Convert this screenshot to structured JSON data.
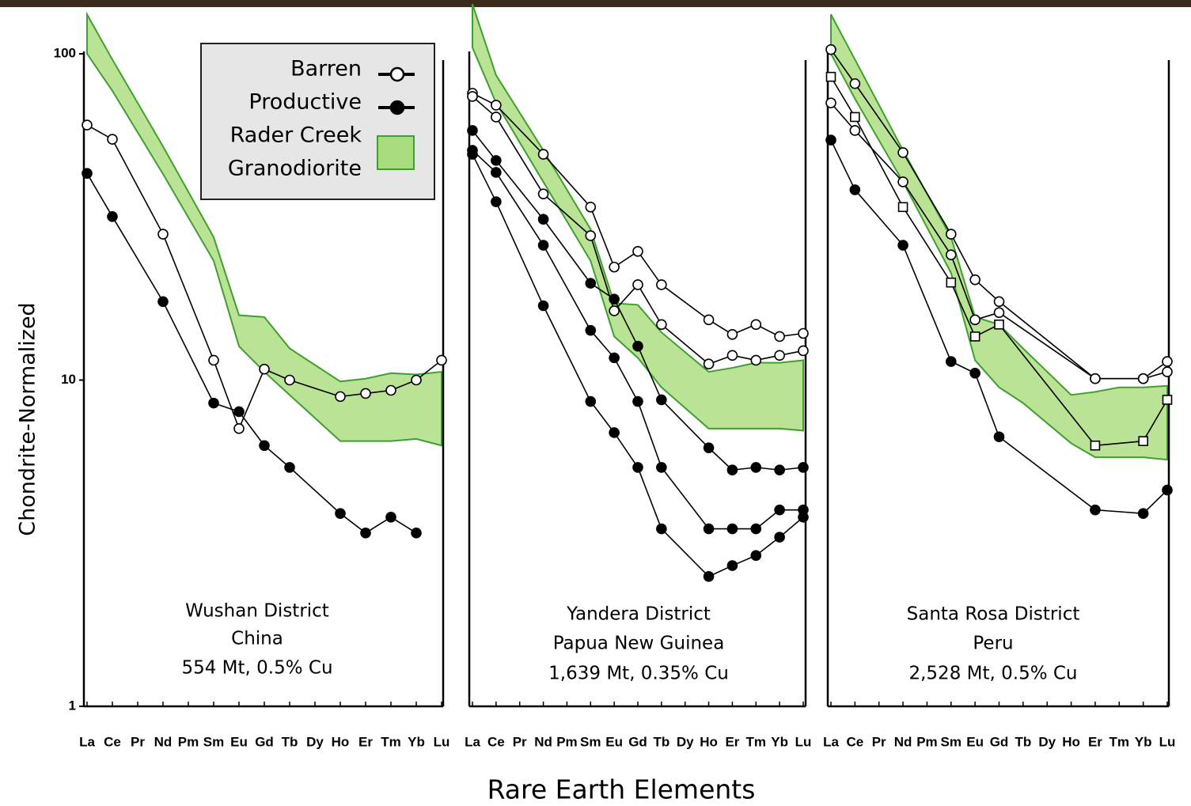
{
  "ylabel": "Chondrite-Normalized",
  "xlabel": "Rare Earth Elements",
  "legend": {
    "items": [
      {
        "label": "Barren",
        "marker": "open"
      },
      {
        "label": "Productive",
        "marker": "filled"
      },
      {
        "label": [
          "Rader Creek",
          "Granodiorite"
        ],
        "marker": "band"
      }
    ]
  },
  "chart_data": [
    {
      "type": "line",
      "log_scale": true,
      "ylim": [
        1,
        100
      ],
      "yticks": [
        1,
        10,
        100
      ],
      "categories": [
        "La",
        "Ce",
        "Pr",
        "Nd",
        "Pm",
        "Sm",
        "Eu",
        "Gd",
        "Tb",
        "Dy",
        "Ho",
        "Er",
        "Tm",
        "Yb",
        "Lu"
      ],
      "annotation": [
        "Wushan District",
        "China",
        "554 Mt, 0.5% Cu"
      ],
      "band": {
        "color": "#a9dc7c",
        "edge": "#3f9f2f",
        "high": [
          132,
          96,
          null,
          52,
          null,
          27.4,
          15.8,
          15.6,
          12.5,
          null,
          9.9,
          10.1,
          10.5,
          10.4,
          10.6
        ],
        "low": [
          100,
          77,
          null,
          42.8,
          null,
          23.2,
          12.7,
          10.6,
          9,
          null,
          6.5,
          6.5,
          6.5,
          6.6,
          6.3
        ]
      },
      "series": [
        {
          "marker": "open",
          "color": "#000000",
          "values": [
            60.5,
            54.7,
            null,
            28,
            null,
            11.5,
            7.1,
            10.8,
            10,
            null,
            8.9,
            9.1,
            9.3,
            10,
            11.5
          ]
        },
        {
          "marker": "filled",
          "color": "#000000",
          "values": [
            43,
            31.7,
            null,
            17.4,
            null,
            8.5,
            8.0,
            6.3,
            5.4,
            null,
            3.9,
            3.4,
            3.8,
            3.4,
            null
          ]
        }
      ]
    },
    {
      "type": "line",
      "log_scale": true,
      "ylim": [
        1,
        100
      ],
      "categories": [
        "La",
        "Ce",
        "Pr",
        "Nd",
        "Pm",
        "Sm",
        "Eu",
        "Gd",
        "Tb",
        "Dy",
        "Ho",
        "Er",
        "Tm",
        "Yb",
        "Lu"
      ],
      "annotation": [
        "Yandera District",
        "Papua New Guinea",
        "1,639 Mt, 0.35% Cu"
      ],
      "band": {
        "color": "#a9dc7c",
        "edge": "#3f9f2f",
        "high": [
          142,
          86,
          null,
          50.6,
          null,
          29,
          17.2,
          17,
          14,
          null,
          10.6,
          10.9,
          11.3,
          11.3,
          11.5
        ],
        "low": [
          104.5,
          70.7,
          null,
          40.5,
          null,
          23.2,
          13.6,
          11.7,
          9.5,
          null,
          7.1,
          7.1,
          7.1,
          7.1,
          7.0
        ]
      },
      "series": [
        {
          "marker": "open",
          "color": "#000000",
          "values": [
            75.7,
            69.6,
            null,
            49.2,
            null,
            33.9,
            22.2,
            24.8,
            19.6,
            null,
            15.3,
            13.8,
            14.8,
            13.6,
            13.9
          ]
        },
        {
          "marker": "open",
          "color": "#000000",
          "values": [
            74,
            64,
            null,
            37.2,
            null,
            27.7,
            16.3,
            19.6,
            14.8,
            null,
            11.2,
            11.9,
            11.5,
            11.9,
            12.3
          ]
        },
        {
          "marker": "filled",
          "color": "#000000",
          "values": [
            58.2,
            47.1,
            null,
            31.1,
            null,
            19.8,
            17.7,
            12.7,
            8.7,
            null,
            6.2,
            5.3,
            5.4,
            5.3,
            5.4
          ]
        },
        {
          "marker": "filled",
          "color": "#000000",
          "values": [
            50.6,
            43.3,
            null,
            25.9,
            null,
            14.2,
            11.7,
            8.6,
            5.4,
            null,
            3.5,
            3.5,
            3.5,
            4.0,
            4.0
          ]
        },
        {
          "marker": "filled",
          "color": "#000000",
          "values": [
            49.2,
            35.2,
            null,
            16.9,
            null,
            8.6,
            6.9,
            5.4,
            3.5,
            null,
            2.5,
            2.7,
            2.9,
            3.3,
            3.8
          ]
        }
      ]
    },
    {
      "type": "line",
      "log_scale": true,
      "ylim": [
        1,
        100
      ],
      "categories": [
        "La",
        "Ce",
        "Pr",
        "Nd",
        "Pm",
        "Sm",
        "Eu",
        "Gd",
        "Tb",
        "Dy",
        "Ho",
        "Er",
        "Tm",
        "Yb",
        "Lu"
      ],
      "annotation": [
        "Santa Rosa District",
        "Peru",
        "2,528 Mt, 0.5% Cu"
      ],
      "band": {
        "color": "#a9dc7c",
        "edge": "#3f9f2f",
        "high": [
          132,
          96,
          null,
          50.6,
          null,
          27.4,
          15.6,
          14.8,
          12.5,
          null,
          9,
          9.2,
          9.5,
          9.5,
          9.6
        ],
        "low": [
          100,
          72.8,
          null,
          40.5,
          null,
          21.3,
          11.5,
          9.5,
          8.5,
          null,
          6.4,
          5.8,
          5.8,
          5.8,
          5.7
        ]
      },
      "series": [
        {
          "marker": "open",
          "color": "#000000",
          "values": [
            103,
            81,
            null,
            49.8,
            null,
            28,
            20.3,
            17.4,
            null,
            null,
            null,
            10.1,
            null,
            10.1,
            11.4
          ]
        },
        {
          "marker": "open",
          "color": "#000000",
          "values": [
            70.7,
            58.2,
            null,
            40.5,
            null,
            24.2,
            15.3,
            16.1,
            null,
            null,
            null,
            10.1,
            null,
            10.1,
            10.6
          ]
        },
        {
          "marker": "square",
          "color": "#000000",
          "values": [
            85,
            64,
            null,
            33.9,
            null,
            19.9,
            13.6,
            14.8,
            null,
            null,
            null,
            6.3,
            null,
            6.5,
            8.7
          ]
        },
        {
          "marker": "filled",
          "color": "#000000",
          "values": [
            54.4,
            38.3,
            null,
            25.9,
            null,
            11.4,
            10.5,
            6.7,
            null,
            null,
            null,
            4.0,
            null,
            3.9,
            4.6
          ]
        }
      ]
    }
  ]
}
